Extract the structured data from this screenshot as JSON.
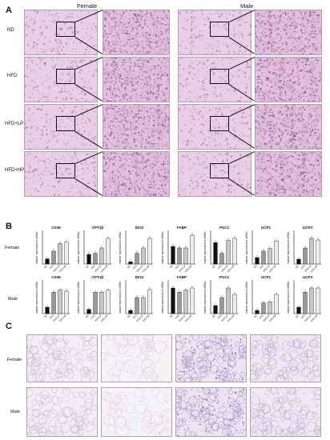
{
  "panel_labels": {
    "a": "A",
    "b": "B",
    "c": "C"
  },
  "panel_a": {
    "col_titles": [
      "Female",
      "Male"
    ],
    "rows": [
      "ND",
      "HFD",
      "HFD+LP",
      "HFD+HP"
    ]
  },
  "panel_b": {
    "row_labels": [
      "Female",
      "Male"
    ],
    "ylabel": "relative expression of mRNA",
    "groups": [
      "ND",
      "HFD",
      "HFD+LP",
      "HFD+HP"
    ]
  },
  "panel_c": {
    "row_labels": [
      "Female",
      "Male"
    ]
  },
  "chart_data": [
    {
      "type": "bar",
      "title": "CD36",
      "sex": "Female",
      "categories": [
        "ND",
        "HFD",
        "HFD+LP",
        "HFD+HP"
      ],
      "values": [
        0.4,
        1.0,
        1.6,
        1.7
      ],
      "ylim": [
        0,
        2.5
      ]
    },
    {
      "type": "bar",
      "title": "CPT1β",
      "sex": "Female",
      "categories": [
        "ND",
        "HFD",
        "HFD+LP",
        "HFD+HP"
      ],
      "values": [
        0.9,
        1.0,
        1.5,
        2.4
      ],
      "ylim": [
        0,
        3
      ]
    },
    {
      "type": "bar",
      "title": "DIO2",
      "sex": "Female",
      "categories": [
        "ND",
        "HFD",
        "HFD+LP",
        "HFD+HP"
      ],
      "values": [
        0.2,
        1.0,
        1.5,
        2.4
      ],
      "ylim": [
        0,
        3
      ]
    },
    {
      "type": "bar",
      "title": "FABP",
      "sex": "Female",
      "categories": [
        "ND",
        "HFD",
        "HFD+LP",
        "HFD+HP"
      ],
      "values": [
        1.1,
        1.0,
        1.0,
        1.8
      ],
      "ylim": [
        0,
        2
      ]
    },
    {
      "type": "bar",
      "title": "PGC1",
      "sex": "Female",
      "categories": [
        "ND",
        "HFD",
        "HFD+LP",
        "HFD+HP"
      ],
      "values": [
        2.0,
        1.0,
        2.2,
        2.4
      ],
      "ylim": [
        0,
        3
      ]
    },
    {
      "type": "bar",
      "title": "UCP1",
      "sex": "Female",
      "categories": [
        "ND",
        "HFD",
        "HFD+LP",
        "HFD+HP"
      ],
      "values": [
        0.5,
        1.0,
        1.2,
        1.8
      ],
      "ylim": [
        0,
        2.5
      ]
    },
    {
      "type": "bar",
      "title": "UCP3",
      "sex": "Female",
      "categories": [
        "ND",
        "HFD",
        "HFD+LP",
        "HFD+HP"
      ],
      "values": [
        0.3,
        1.0,
        1.6,
        1.5
      ],
      "ylim": [
        0,
        2
      ]
    },
    {
      "type": "bar",
      "title": "CD36",
      "sex": "Male",
      "categories": [
        "ND",
        "HFD",
        "HFD+LP",
        "HFD+HP"
      ],
      "values": [
        0.3,
        1.0,
        1.1,
        1.05
      ],
      "ylim": [
        0,
        1.5
      ]
    },
    {
      "type": "bar",
      "title": "CPT1β",
      "sex": "Male",
      "categories": [
        "ND",
        "HFD",
        "HFD+LP",
        "HFD+HP"
      ],
      "values": [
        0.2,
        1.0,
        1.0,
        1.1
      ],
      "ylim": [
        0,
        1.5
      ]
    },
    {
      "type": "bar",
      "title": "DIO2",
      "sex": "Male",
      "categories": [
        "ND",
        "HFD",
        "HFD+LP",
        "HFD+HP"
      ],
      "values": [
        0.2,
        1.0,
        1.0,
        1.5
      ],
      "ylim": [
        0,
        2
      ]
    },
    {
      "type": "bar",
      "title": "FABP",
      "sex": "Male",
      "categories": [
        "ND",
        "HFD",
        "HFD+LP",
        "HFD+HP"
      ],
      "values": [
        1.2,
        1.0,
        1.1,
        1.2
      ],
      "ylim": [
        0,
        1.5
      ]
    },
    {
      "type": "bar",
      "title": "PGC1",
      "sex": "Male",
      "categories": [
        "ND",
        "HFD",
        "HFD+LP",
        "HFD+HP"
      ],
      "values": [
        0.5,
        1.0,
        1.6,
        1.2
      ],
      "ylim": [
        0,
        2
      ]
    },
    {
      "type": "bar",
      "title": "UCP1",
      "sex": "Male",
      "categories": [
        "ND",
        "HFD",
        "HFD+LP",
        "HFD+HP"
      ],
      "values": [
        0.3,
        1.0,
        1.1,
        1.8
      ],
      "ylim": [
        0,
        3
      ]
    },
    {
      "type": "bar",
      "title": "UCP3",
      "sex": "Male",
      "categories": [
        "ND",
        "HFD",
        "HFD+LP",
        "HFD+HP"
      ],
      "values": [
        0.3,
        1.0,
        1.2,
        1.2
      ],
      "ylim": [
        0,
        1.5
      ]
    }
  ]
}
